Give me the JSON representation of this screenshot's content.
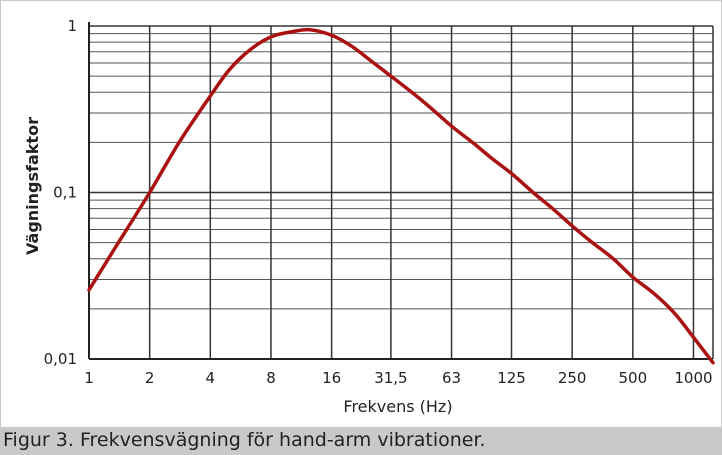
{
  "caption": "Figur 3. Frekvensvägning för hand-arm vibrationer.",
  "chart_data": {
    "type": "line",
    "title": "",
    "xlabel": "Frekvens (Hz)",
    "ylabel": "Vägningsfaktor",
    "x_scale": "log2",
    "y_scale": "log",
    "xlim": [
      1,
      1250
    ],
    "ylim": [
      0.01,
      1
    ],
    "x_ticks": [
      1,
      2,
      4,
      8,
      16,
      31.5,
      63,
      125,
      250,
      500,
      1000
    ],
    "x_tick_labels": [
      "1",
      "2",
      "4",
      "8",
      "16",
      "31,5",
      "63",
      "125",
      "250",
      "500",
      "1000"
    ],
    "y_tick_labels": [
      "0,01",
      "0,1",
      "1"
    ],
    "grid": true,
    "line_color": "#aa1111",
    "series": [
      {
        "x": [
          1,
          1.4,
          2,
          2.8,
          4,
          5,
          6.3,
          8,
          10,
          12.5,
          16,
          20,
          25,
          31.5,
          40,
          50,
          63,
          80,
          100,
          125,
          160,
          200,
          250,
          315,
          400,
          500,
          630,
          800,
          1000,
          1250
        ],
        "values": [
          0.026,
          0.05,
          0.1,
          0.2,
          0.38,
          0.55,
          0.72,
          0.86,
          0.92,
          0.95,
          0.88,
          0.76,
          0.62,
          0.5,
          0.4,
          0.32,
          0.25,
          0.2,
          0.16,
          0.13,
          0.1,
          0.08,
          0.063,
          0.05,
          0.04,
          0.031,
          0.025,
          0.019,
          0.0135,
          0.0095
        ]
      }
    ]
  }
}
